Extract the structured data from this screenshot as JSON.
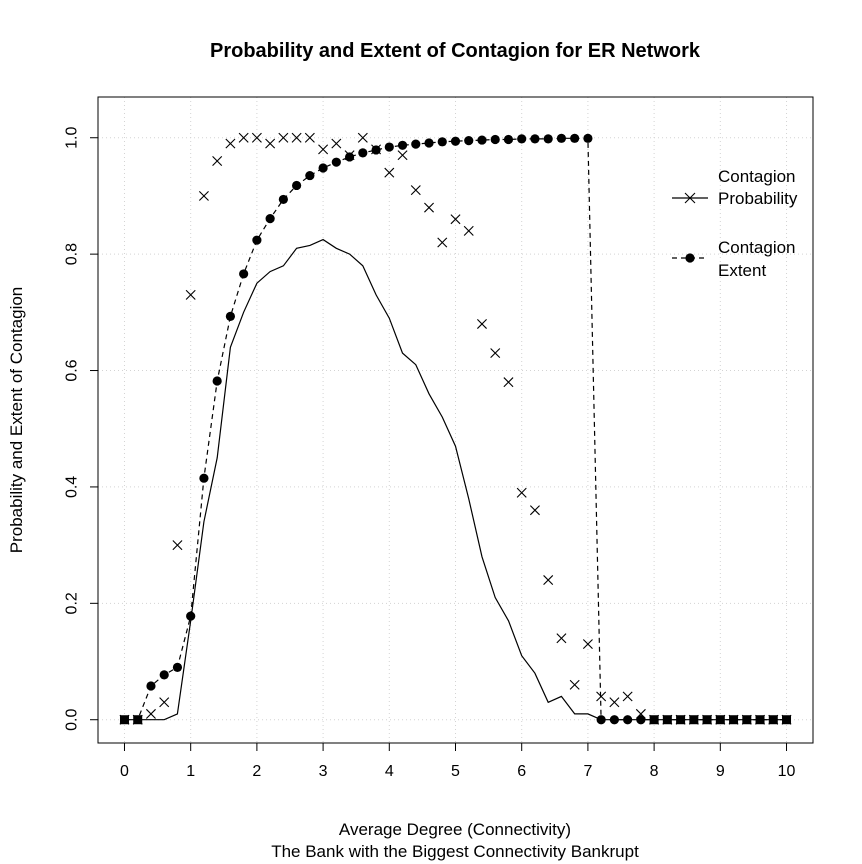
{
  "chart_data": {
    "type": "line",
    "title": "Probability and Extent of Contagion for ER Network",
    "xlabel": "Average Degree (Connectivity)",
    "xlabel2": "The Bank with the Biggest Connectivity Bankrupt",
    "ylabel": "Probability and Extent of Contagion",
    "xlim": [
      -0.4,
      10.4
    ],
    "ylim": [
      -0.04,
      1.07
    ],
    "xticks": [
      "0",
      "1",
      "2",
      "3",
      "4",
      "5",
      "6",
      "7",
      "8",
      "9",
      "10"
    ],
    "yticks": [
      "0.0",
      "0.2",
      "0.4",
      "0.6",
      "0.8",
      "1.0"
    ],
    "grid": true,
    "legend": {
      "placement": "top-right",
      "entries": [
        {
          "line1": "Contagion",
          "line2": "Probability",
          "marker": "x",
          "line": "solid"
        },
        {
          "line1": "Contagion",
          "line2": "Extent",
          "marker": "dot",
          "line": "dashed"
        }
      ]
    },
    "x": [
      0,
      0.2,
      0.4,
      0.6,
      0.8,
      1,
      1.2,
      1.4,
      1.6,
      1.8,
      2,
      2.2,
      2.4,
      2.6,
      2.8,
      3,
      3.2,
      3.4,
      3.6,
      3.8,
      4,
      4.2,
      4.4,
      4.6,
      4.8,
      5,
      5.2,
      5.4,
      5.6,
      5.8,
      6,
      6.2,
      6.4,
      6.6,
      6.8,
      7,
      7.2,
      7.4,
      7.6,
      7.8,
      8,
      8.2,
      8.4,
      8.6,
      8.8,
      9,
      9.2,
      9.4,
      9.6,
      9.8,
      10
    ],
    "series": [
      {
        "role": "probability-points",
        "marker": "x",
        "values": [
          0,
          0,
          0.01,
          0.03,
          0.3,
          0.73,
          0.9,
          0.96,
          0.99,
          1.0,
          1.0,
          0.99,
          1.0,
          1.0,
          1.0,
          0.98,
          0.99,
          0.97,
          1.0,
          0.98,
          0.94,
          0.97,
          0.91,
          0.88,
          0.82,
          0.86,
          0.84,
          0.68,
          0.63,
          0.58,
          0.39,
          0.36,
          0.24,
          0.14,
          0.06,
          0.13,
          0.04,
          0.03,
          0.04,
          0.01,
          0,
          0,
          0,
          0,
          0,
          0,
          0,
          0,
          0,
          0,
          0
        ]
      },
      {
        "role": "probability-line",
        "line": "solid",
        "values": [
          0,
          0,
          0,
          0,
          0.01,
          0.17,
          0.34,
          0.45,
          0.64,
          0.7,
          0.75,
          0.77,
          0.78,
          0.81,
          0.815,
          0.825,
          0.81,
          0.8,
          0.78,
          0.73,
          0.69,
          0.63,
          0.61,
          0.56,
          0.52,
          0.47,
          0.38,
          0.28,
          0.21,
          0.17,
          0.11,
          0.08,
          0.03,
          0.04,
          0.01,
          0.01,
          0,
          0,
          0,
          0,
          0,
          0,
          0,
          0,
          0,
          0,
          0,
          0,
          0,
          0,
          0
        ]
      },
      {
        "role": "extent",
        "marker": "dot",
        "line": "dashed",
        "values": [
          0,
          0,
          0.058,
          0.077,
          0.09,
          0.178,
          0.415,
          0.582,
          0.693,
          0.766,
          0.824,
          0.861,
          0.894,
          0.918,
          0.935,
          0.948,
          0.958,
          0.967,
          0.974,
          0.979,
          0.984,
          0.987,
          0.989,
          0.991,
          0.993,
          0.994,
          0.995,
          0.996,
          0.997,
          0.997,
          0.998,
          0.998,
          0.998,
          0.999,
          0.999,
          0.999,
          0,
          0,
          0,
          0,
          0,
          0,
          0,
          0,
          0,
          0,
          0,
          0,
          0,
          0,
          0
        ],
        "dot_last_index": 39,
        "dashed_line_values": [
          0,
          0,
          0.058,
          0.077,
          0.09,
          0.178,
          0.415,
          0.582,
          0.693,
          0.766,
          0.824,
          0.861,
          0.894,
          0.918,
          0.935,
          0.948,
          0.958,
          0.967,
          0.974,
          0.979,
          0.984,
          0.987,
          0.989,
          0.991,
          0.993,
          0.994,
          0.995,
          0.996,
          0.997,
          0.997,
          0.998,
          0.998,
          0.998,
          0.999,
          0.999,
          0.999,
          0,
          0,
          0,
          0,
          0,
          0,
          0,
          0,
          0,
          0,
          0,
          0,
          0,
          0,
          0
        ]
      }
    ]
  }
}
